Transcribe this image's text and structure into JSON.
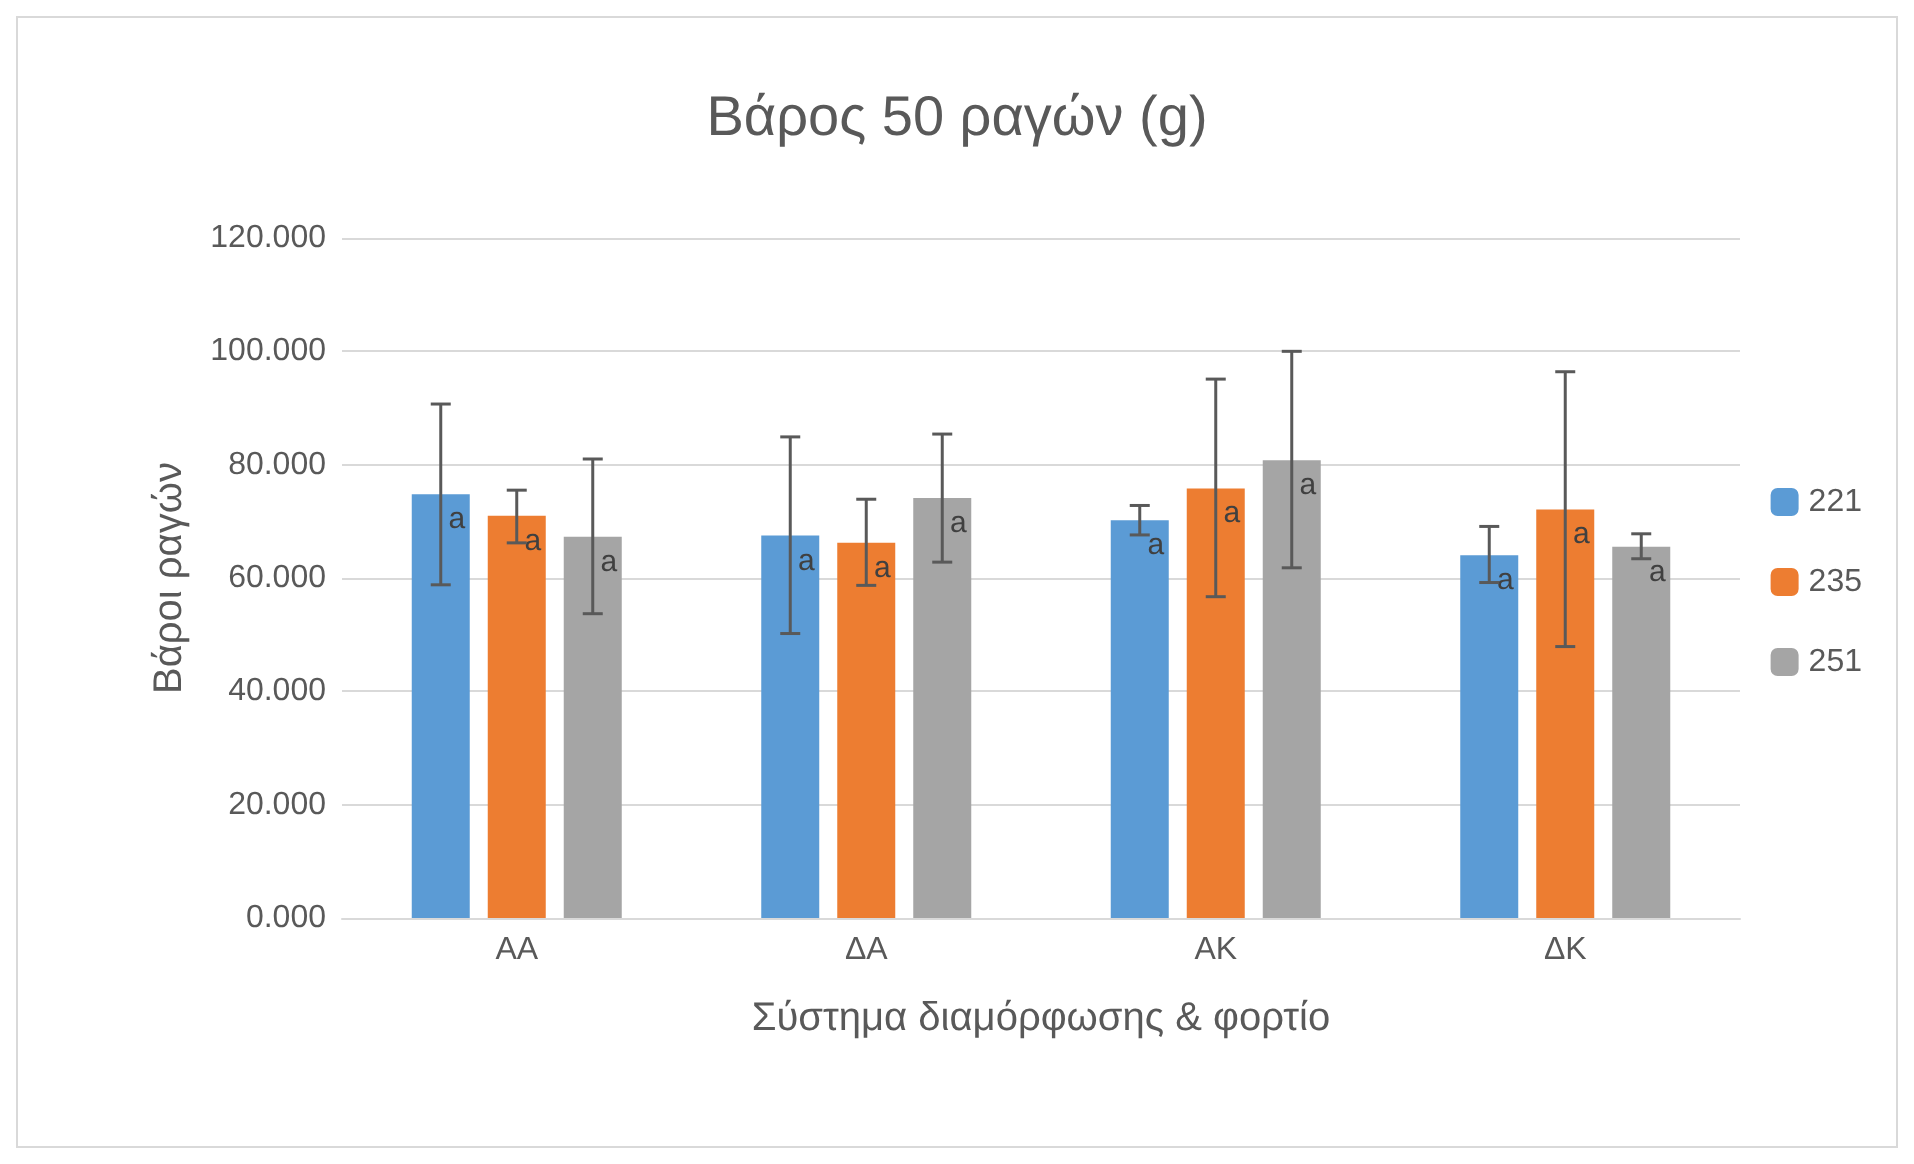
{
  "chart_data": {
    "type": "bar",
    "title": "Βάρος 50 ραγών (g)",
    "xlabel": "Σύστημα διαμόρφωσης & φορτίο",
    "ylabel": "Βάροι ραγών",
    "categories": [
      "ΑΑ",
      "ΔΑ",
      "ΑΚ",
      "ΔΚ"
    ],
    "series": [
      {
        "name": "221",
        "color": "#5b9bd5",
        "values": [
          74.8,
          67.5,
          70.2,
          64.0
        ],
        "errors": [
          [
            58.8,
            90.7
          ],
          [
            50.2,
            84.9
          ],
          [
            67.6,
            72.8
          ],
          [
            59.2,
            69.1
          ]
        ],
        "value_labels": [
          "a",
          "a",
          "a",
          "a"
        ]
      },
      {
        "name": "235",
        "color": "#ed7d31",
        "values": [
          71.0,
          66.2,
          75.8,
          72.1
        ],
        "errors": [
          [
            66.2,
            75.5
          ],
          [
            58.7,
            73.9
          ],
          [
            56.7,
            95.1
          ],
          [
            47.9,
            96.4
          ]
        ],
        "value_labels": [
          "a",
          "a",
          "a",
          "a"
        ]
      },
      {
        "name": "251",
        "color": "#a5a5a5",
        "values": [
          67.3,
          74.1,
          80.8,
          65.5
        ],
        "errors": [
          [
            53.7,
            81.0
          ],
          [
            62.8,
            85.4
          ],
          [
            61.8,
            100.0
          ],
          [
            63.4,
            67.8
          ]
        ],
        "value_labels": [
          "a",
          "a",
          "a",
          "a"
        ]
      }
    ],
    "ylim": [
      0,
      120
    ],
    "yticks": [
      {
        "value": 0,
        "label": "0.000"
      },
      {
        "value": 20,
        "label": "20.000"
      },
      {
        "value": 40,
        "label": "40.000"
      },
      {
        "value": 60,
        "label": "60.000"
      },
      {
        "value": 80,
        "label": "80.000"
      },
      {
        "value": 100,
        "label": "100.000"
      },
      {
        "value": 120,
        "label": "120.000"
      }
    ],
    "grid": "y",
    "legend": "right"
  }
}
